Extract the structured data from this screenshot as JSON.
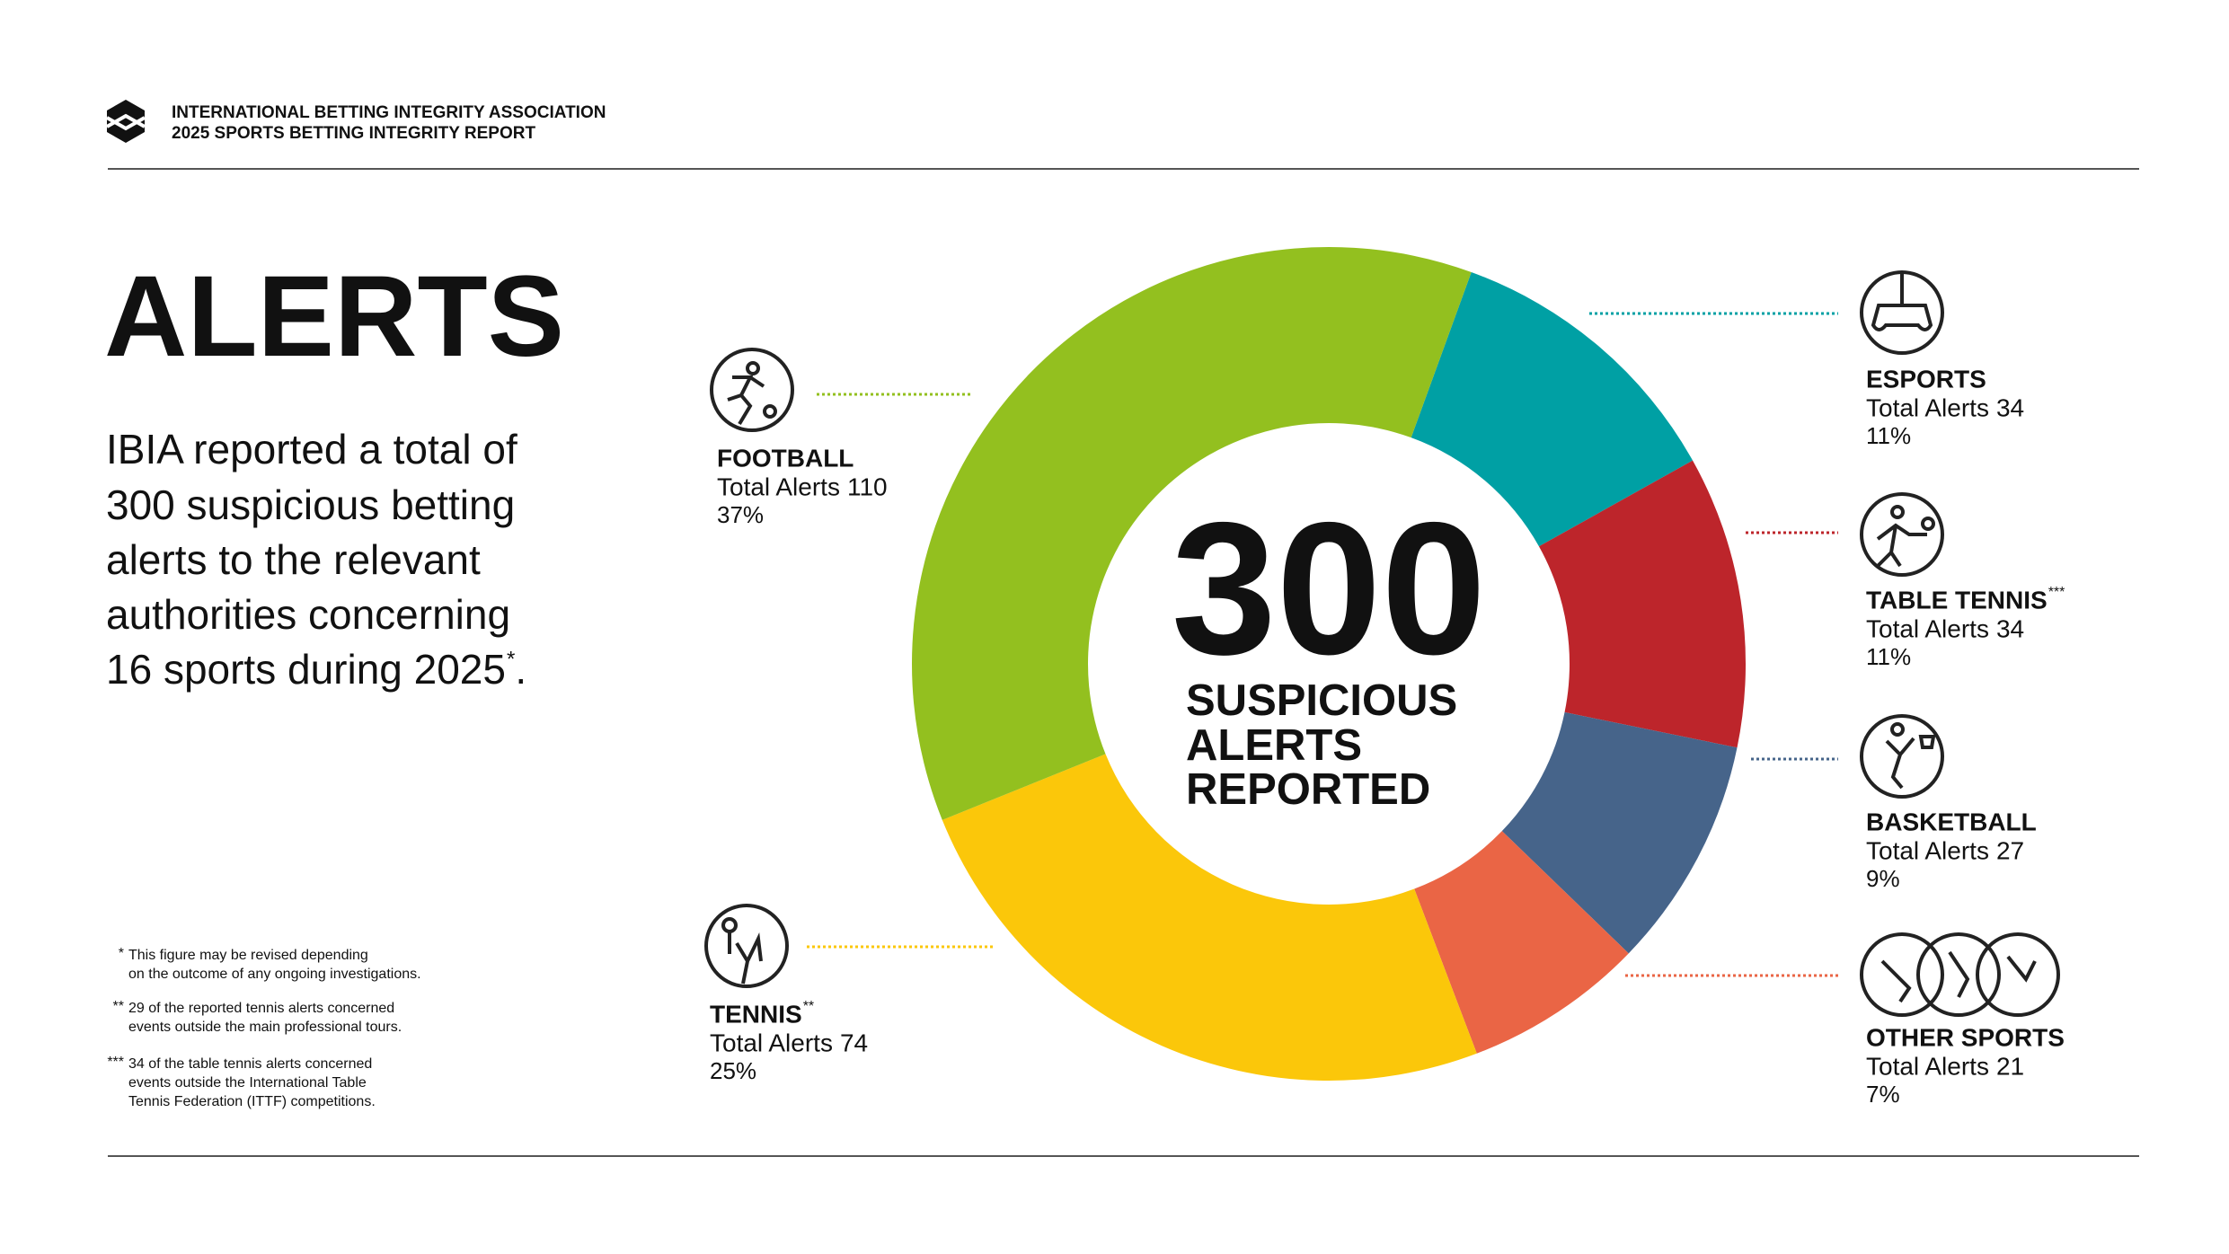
{
  "header": {
    "org": "INTERNATIONAL BETTING INTEGRITY ASSOCIATION",
    "report": "2025 SPORTS BETTING INTEGRITY REPORT"
  },
  "title": "ALERTS",
  "intro": {
    "lines": [
      "IBIA reported a total of",
      "300 suspicious betting",
      "alerts to the relevant",
      "authorities concerning",
      "16 sports during 2025"
    ],
    "mark": "*",
    "end": "."
  },
  "footnotes": [
    {
      "mark": "*",
      "lines": [
        "This figure may be revised depending",
        "on the outcome of any ongoing investigations."
      ]
    },
    {
      "mark": "**",
      "lines": [
        "29 of the reported tennis alerts concerned",
        "events outside the main professional tours."
      ]
    },
    {
      "mark": "***",
      "lines": [
        "34 of the table tennis alerts concerned",
        "events outside the International Table",
        "Tennis Federation (ITTF) competitions."
      ]
    }
  ],
  "chart_data": {
    "type": "donut",
    "categories": [
      "ESPORTS",
      "TABLE TENNIS",
      "BASKETBALL",
      "OTHER SPORTS",
      "TENNIS",
      "FOOTBALL"
    ],
    "category_marks": {
      "1": "***",
      "4": "**"
    },
    "value_prefix": "Total Alerts",
    "values": [
      34,
      34,
      27,
      21,
      74,
      110
    ],
    "percent_labels": [
      "11%",
      "11%",
      "9%",
      "7%",
      "25%",
      "37%"
    ],
    "colors": [
      "#00a0a4",
      "#bd252b",
      "#46648a",
      "#ea6545",
      "#fbc70a",
      "#93c01f"
    ],
    "center_value": 300,
    "center_lines": [
      "SUSPICIOUS",
      "ALERTS",
      "REPORTED"
    ]
  }
}
